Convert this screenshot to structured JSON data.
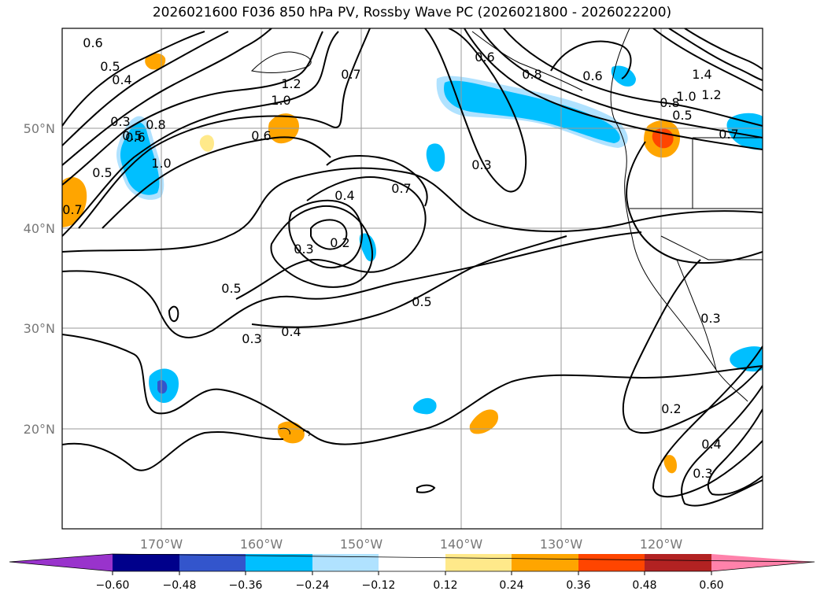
{
  "title": "2026021600 F036 850 hPa PV, Rossby Wave PC (2026021800 - 2026022200)",
  "colors": {
    "grid": "#9a9a9a",
    "contour": "#000000",
    "coast": "#000000",
    "axis_label": "#777777"
  },
  "lat_labels": [
    "50°N",
    "40°N",
    "30°N",
    "20°N"
  ],
  "lon_labels": [
    "170°W",
    "160°W",
    "150°W",
    "140°W",
    "130°W",
    "120°W"
  ],
  "contour_labels": [
    "0.6",
    "0.5",
    "0.4",
    "0.3",
    "0.5",
    "0.6",
    "0.8",
    "1.0",
    "0.5",
    "0.7",
    "1.2",
    "1.0",
    "0.7",
    "0.6",
    "0.4",
    "0.7",
    "0.2",
    "0.3",
    "0.3",
    "0.6",
    "0.8",
    "0.6",
    "1.4",
    "1.2",
    "1.0",
    "0.8",
    "0.5",
    "0.7",
    "0.5",
    "0.4",
    "0.3",
    "0.5",
    "0.3",
    "0.2",
    "0.4",
    "0.3"
  ],
  "colorbar": {
    "ticks": [
      "−0.60",
      "−0.48",
      "−0.36",
      "−0.24",
      "−0.12",
      "0.12",
      "0.24",
      "0.36",
      "0.48",
      "0.60"
    ],
    "colors": [
      "#9933cc",
      "#00008b",
      "#3355cc",
      "#00bfff",
      "#b0e2ff",
      "#ffffff",
      "#ffe98a",
      "#ffa500",
      "#ff4500",
      "#b22222",
      "#ff82ab"
    ]
  },
  "anomalies": [
    {
      "sign": "negative",
      "strength": "-0.24",
      "color": "#00bfff"
    },
    {
      "sign": "negative",
      "strength": "-0.24",
      "color": "#00bfff"
    },
    {
      "sign": "negative",
      "strength": "-0.24",
      "color": "#00bfff"
    },
    {
      "sign": "negative",
      "strength": "-0.24",
      "color": "#00bfff"
    },
    {
      "sign": "negative",
      "strength": "-0.36",
      "color": "#3355cc"
    },
    {
      "sign": "negative",
      "strength": "-0.24",
      "color": "#00bfff"
    },
    {
      "sign": "negative",
      "strength": "-0.24",
      "color": "#00bfff"
    },
    {
      "sign": "negative",
      "strength": "-0.24",
      "color": "#00bfff"
    },
    {
      "sign": "negative",
      "strength": "-0.24",
      "color": "#00bfff"
    },
    {
      "sign": "positive",
      "strength": "0.24",
      "color": "#ffa500"
    },
    {
      "sign": "positive",
      "strength": "0.24",
      "color": "#ffa500"
    },
    {
      "sign": "positive",
      "strength": "0.24",
      "color": "#ffa500"
    },
    {
      "sign": "positive",
      "strength": "0.24",
      "color": "#ffa500"
    },
    {
      "sign": "positive",
      "strength": "0.36",
      "color": "#ff4500"
    },
    {
      "sign": "positive",
      "strength": "0.24",
      "color": "#ffa500"
    },
    {
      "sign": "positive",
      "strength": "0.24",
      "color": "#ffa500"
    }
  ]
}
